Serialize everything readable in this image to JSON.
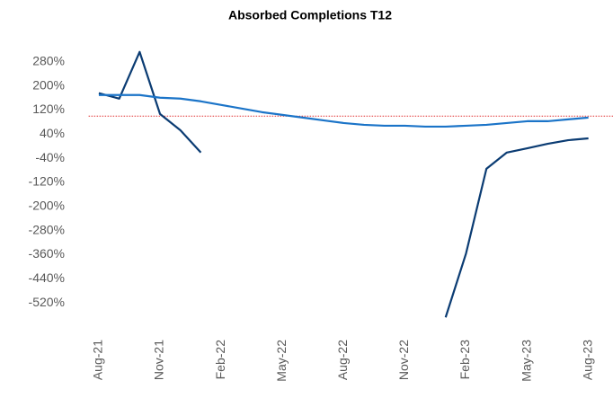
{
  "chart_data": {
    "type": "line",
    "title": "Absorbed Completions T12",
    "categories": [
      "Aug-21",
      null,
      null,
      "Nov-21",
      null,
      null,
      "Feb-22",
      null,
      null,
      "May-22",
      null,
      null,
      "Aug-22",
      null,
      null,
      "Nov-22",
      null,
      null,
      "Feb-23",
      null,
      null,
      "May-23",
      null,
      null,
      "Aug-23"
    ],
    "series": [
      {
        "color": "#0b3c73",
        "values": [
          176,
          158,
          313,
          107,
          53,
          -21,
          null,
          null,
          null,
          null,
          null,
          null,
          null,
          null,
          null,
          null,
          null,
          -568,
          -356,
          -75,
          -21,
          -7,
          8,
          20,
          26
        ]
      },
      {
        "color": "#1b74c8",
        "values": [
          170,
          170,
          170,
          161,
          158,
          149,
          137,
          125,
          113,
          104,
          95,
          86,
          77,
          71,
          68,
          68,
          65,
          65,
          68,
          71,
          77,
          83,
          83,
          89,
          95
        ]
      }
    ],
    "ylim": [
      -600,
      360
    ],
    "yticks": [
      {
        "value": 280,
        "label": "280%"
      },
      {
        "value": 200,
        "label": "200%"
      },
      {
        "value": 120,
        "label": "120%"
      },
      {
        "value": 40,
        "label": "40%"
      },
      {
        "value": -40,
        "label": "-40%"
      },
      {
        "value": -120,
        "label": "-120%"
      },
      {
        "value": -200,
        "label": "-200%"
      },
      {
        "value": -280,
        "label": "-280%"
      },
      {
        "value": -360,
        "label": "-360%"
      },
      {
        "value": -440,
        "label": "-440%"
      },
      {
        "value": -520,
        "label": "-520%"
      }
    ],
    "reference_line": {
      "value": 100,
      "color": "#e03030"
    },
    "grid": false
  }
}
